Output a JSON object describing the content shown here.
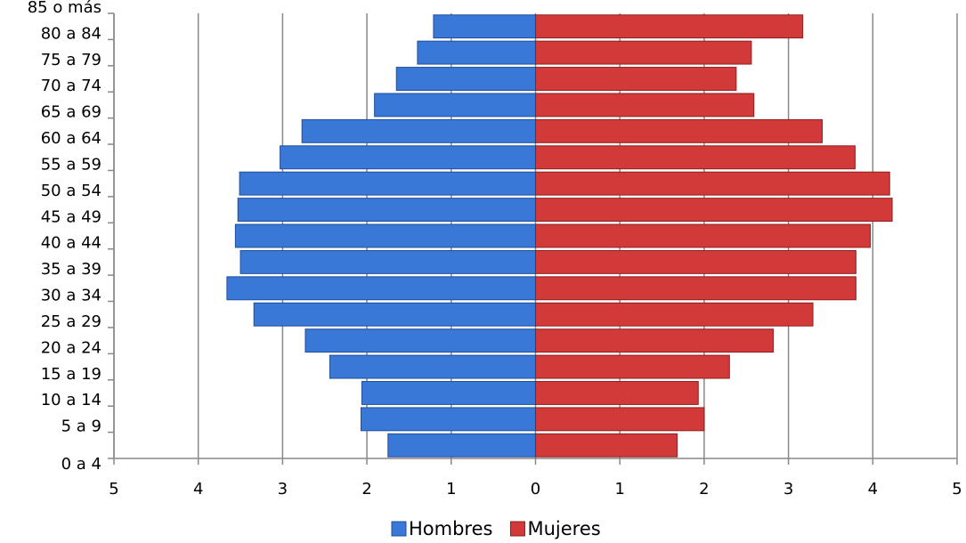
{
  "chart_data": {
    "type": "pyramid",
    "categories": [
      "0 a 4",
      "5 a 9",
      "10 a 14",
      "15 a 19",
      "20 a 24",
      "25 a 29",
      "30 a 34",
      "35 a 39",
      "40 a 44",
      "45 a 49",
      "50 a 54",
      "55 a 59",
      "60 a 64",
      "65 a 69",
      "70 a 74",
      "75 a 79",
      "80 a 84",
      "85 o más"
    ],
    "series": [
      {
        "name": "Hombres",
        "color": "#3a78d8",
        "values": [
          null,
          -1.75,
          -2.07,
          -2.06,
          -2.44,
          -2.73,
          -3.34,
          -3.66,
          -3.5,
          -3.56,
          -3.53,
          -3.51,
          -3.03,
          -2.77,
          -1.91,
          -1.65,
          -1.4,
          -1.21
        ]
      },
      {
        "name": "Mujeres",
        "color": "#d23a3a",
        "values": [
          null,
          1.68,
          2.0,
          1.93,
          2.3,
          2.82,
          3.29,
          3.8,
          3.8,
          3.97,
          4.23,
          4.2,
          3.79,
          3.4,
          2.59,
          2.38,
          2.56,
          3.17
        ]
      }
    ],
    "xlim": [
      -5,
      5
    ],
    "xticks": [
      {
        "value": -5,
        "label": "5"
      },
      {
        "value": -4,
        "label": "4"
      },
      {
        "value": -3,
        "label": "3"
      },
      {
        "value": -2,
        "label": "2"
      },
      {
        "value": -1,
        "label": "1"
      },
      0,
      1,
      2,
      3,
      4,
      5
    ],
    "grid": true,
    "legend": "bottom"
  }
}
